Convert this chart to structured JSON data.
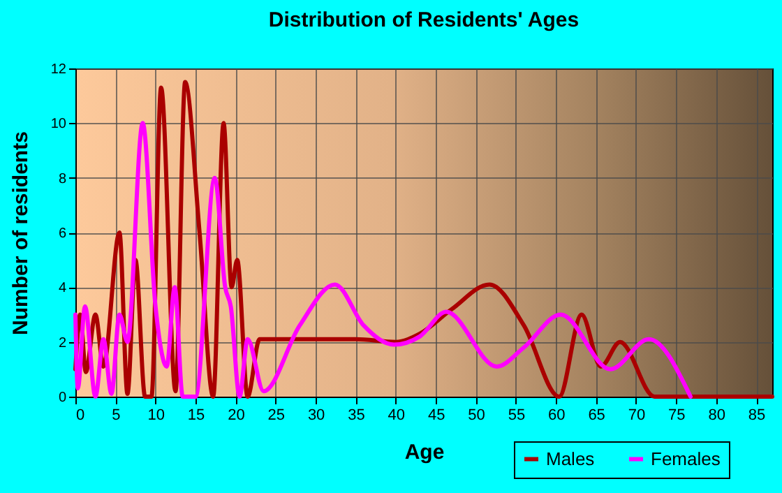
{
  "chart_data": {
    "type": "line",
    "title": "Distribution of Residents' Ages",
    "xlabel": "Age",
    "ylabel": "Number of residents",
    "xlim": [
      0,
      87
    ],
    "xticks": [
      0,
      5,
      10,
      15,
      20,
      25,
      30,
      35,
      40,
      45,
      50,
      55,
      60,
      65,
      70,
      75,
      80,
      85
    ],
    "ylim": [
      0,
      12
    ],
    "yticks": [
      0,
      2,
      4,
      6,
      8,
      10,
      12
    ],
    "grid": true,
    "legend": "bottom right",
    "marker": "none",
    "line_style": "solid",
    "series": [
      {
        "name": "Males",
        "color": "#aa0000",
        "x": [
          0,
          0.6,
          1.3,
          2.5,
          3.5,
          5.5,
          6.5,
          7.5,
          8.7,
          9.5,
          10.7,
          12.5,
          13.7,
          15.5,
          17.2,
          18.5,
          19.5,
          20.2,
          21.5,
          23,
          25,
          30,
          35,
          40,
          43,
          47,
          51.7,
          56,
          60.4,
          63.2,
          65.6,
          68,
          72.3,
          80,
          87
        ],
        "values": [
          1,
          3,
          0.9,
          3,
          1.1,
          6,
          0.1,
          5,
          0,
          0,
          11.3,
          0.2,
          11.5,
          6,
          0,
          10,
          4,
          5,
          0,
          2.1,
          2.1,
          2.1,
          2.1,
          2,
          2.3,
          3.2,
          4.1,
          2.6,
          0,
          3,
          1.1,
          2,
          0,
          0,
          0
        ]
      },
      {
        "name": "Females",
        "color": "#ff00ff",
        "x": [
          0,
          0.3,
          1.2,
          2.5,
          3.5,
          4.5,
          5.5,
          6.5,
          8.4,
          10,
          11.4,
          12.4,
          13.4,
          15,
          17.4,
          18.7,
          19.4,
          20.5,
          21.5,
          23.5,
          28,
          32.4,
          36,
          39.8,
          43,
          46.3,
          52.6,
          56,
          60.6,
          66.8,
          71.6,
          76.8
        ],
        "values": [
          3,
          0.3,
          3.3,
          0,
          2.1,
          0.1,
          3,
          2,
          10,
          3.3,
          1.1,
          4,
          0,
          0,
          8,
          4,
          3.3,
          0,
          2.1,
          0.2,
          2.6,
          4.1,
          2.6,
          1.9,
          2.2,
          3.1,
          1.1,
          1.8,
          3,
          1,
          2.1,
          0
        ]
      }
    ]
  }
}
